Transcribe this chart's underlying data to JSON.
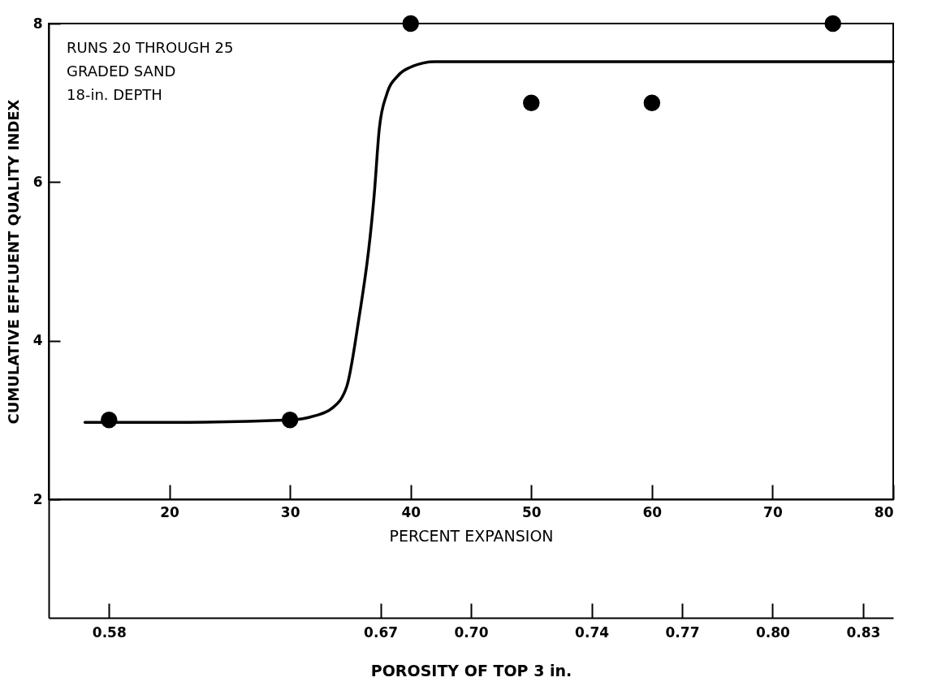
{
  "chart_data": {
    "type": "scatter",
    "xlabel": "PERCENT EXPANSION",
    "ylabel": "CUMULATIVE EFFLUENT QUALITY INDEX",
    "x2label": "POROSITY OF TOP 3 in.",
    "annotations": [
      "RUNS 20 THROUGH 25",
      "GRADED SAND",
      "18-in. DEPTH"
    ],
    "series": [
      {
        "type": "line",
        "color": "#000000",
        "line_style": "solid",
        "x": [
          13,
          20,
          30,
          32,
          33.5,
          34.7,
          35.6,
          37,
          37.4,
          38,
          39,
          40,
          42,
          50,
          60,
          70,
          80
        ],
        "values": [
          2.97,
          2.97,
          3.0,
          3.05,
          3.15,
          3.42,
          4.17,
          5.88,
          6.67,
          7.1,
          7.35,
          7.45,
          7.52,
          7.52,
          7.52,
          7.52,
          7.52
        ]
      },
      {
        "color": "#000000",
        "marker": "circle",
        "x": [
          15,
          30,
          40,
          50,
          60,
          75
        ],
        "values": [
          3,
          3,
          8,
          7,
          7,
          8
        ]
      }
    ],
    "xlim": [
      10,
      80
    ],
    "xticks": [
      20,
      30,
      40,
      50,
      60,
      70,
      80
    ],
    "x2lim": [
      0.56,
      0.84
    ],
    "x2ticks": [
      {
        "value": 0.58,
        "label": "0.58"
      },
      {
        "value": 0.67,
        "label": "0.67"
      },
      {
        "value": 0.7,
        "label": "0.70"
      },
      {
        "value": 0.74,
        "label": "0.74"
      },
      {
        "value": 0.77,
        "label": "0.77"
      },
      {
        "value": 0.8,
        "label": "0.80"
      },
      {
        "value": 0.83,
        "label": "0.83"
      }
    ],
    "ylim": [
      2,
      8
    ],
    "yticks": [
      2,
      4,
      6,
      8
    ]
  }
}
